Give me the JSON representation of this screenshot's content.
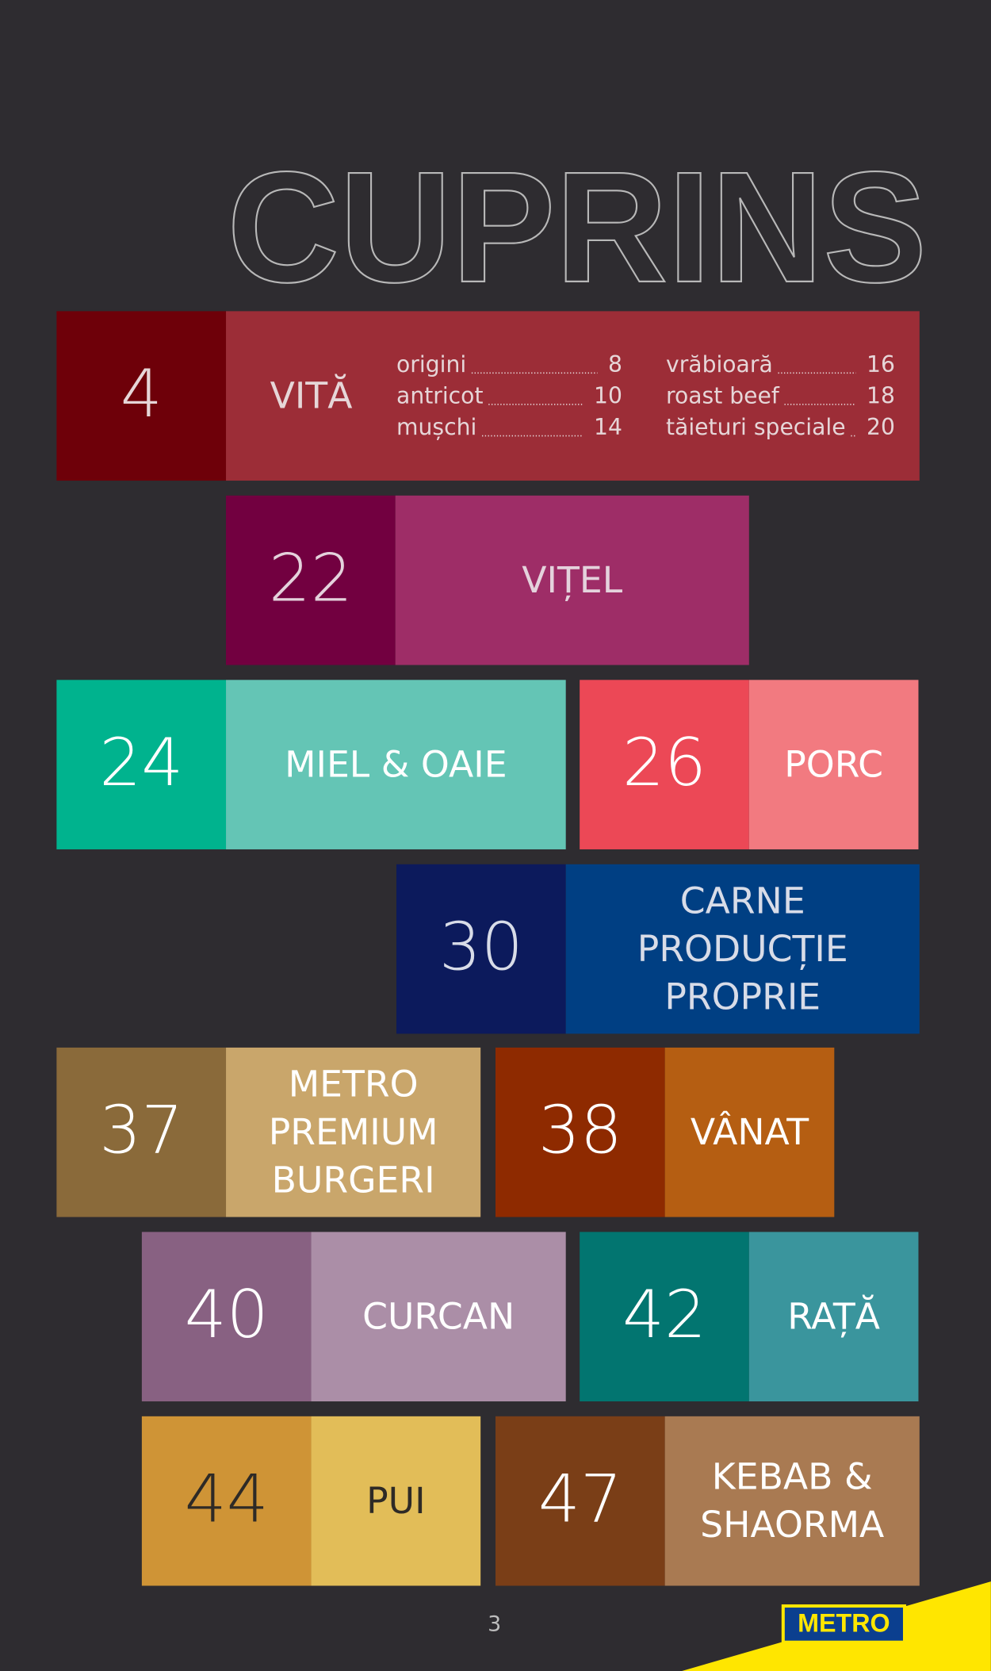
{
  "title": "CUPRINS",
  "sections": [
    {
      "page": 4,
      "label": [
        "VITĂ"
      ],
      "colors": [
        "#6e0009",
        "#9c2d37"
      ],
      "text_color": "#e6d6d8",
      "items": [
        {
          "name": "origini",
          "page": 8
        },
        {
          "name": "antricot",
          "page": 10
        },
        {
          "name": "mușchi",
          "page": 14
        },
        {
          "name": "vrăbioară",
          "page": 16
        },
        {
          "name": "roast beef",
          "page": 18
        },
        {
          "name": "tăieturi speciale",
          "page": 20
        }
      ]
    },
    {
      "page": 22,
      "label": [
        "VIȚEL"
      ],
      "colors": [
        "#720040",
        "#9e2d67"
      ],
      "text_color": "#e4d2dc"
    },
    {
      "page": 24,
      "label": [
        "MIEL & OAIE"
      ],
      "colors": [
        "#00b38e",
        "#64c5b5"
      ],
      "text_color": "#ffffff"
    },
    {
      "page": 26,
      "label": [
        "PORC"
      ],
      "colors": [
        "#ec4856",
        "#f27a80"
      ],
      "text_color": "#ffffff"
    },
    {
      "page": 30,
      "label": [
        "CARNE",
        "PRODUCȚIE",
        "PROPRIE"
      ],
      "colors": [
        "#0c1a5c",
        "#003f83"
      ],
      "text_color": "#d8dce8"
    },
    {
      "page": 37,
      "label": [
        "METRO",
        "PREMIUM",
        "BURGERI"
      ],
      "colors": [
        "#8a6a3a",
        "#c9a66b"
      ],
      "text_color": "#ffffff"
    },
    {
      "page": 38,
      "label": [
        "VÂNAT"
      ],
      "colors": [
        "#8e2a00",
        "#b55e12"
      ],
      "text_color": "#ffffff"
    },
    {
      "page": 40,
      "label": [
        "CURCAN"
      ],
      "colors": [
        "#886182",
        "#ab8ea7"
      ],
      "text_color": "#ffffff"
    },
    {
      "page": 42,
      "label": [
        "RAȚĂ"
      ],
      "colors": [
        "#027570",
        "#3a959d"
      ],
      "text_color": "#ffffff"
    },
    {
      "page": 44,
      "label": [
        "PUI"
      ],
      "colors": [
        "#cf9436",
        "#e2bd58"
      ],
      "text_color": "#2e2a26"
    },
    {
      "page": 47,
      "label": [
        "KEBAB &",
        "SHAORMA"
      ],
      "colors": [
        "#7a3e17",
        "#a97a52"
      ],
      "text_color": "#ffffff"
    }
  ],
  "footer": {
    "page_number": "3",
    "logo": "METRO"
  }
}
